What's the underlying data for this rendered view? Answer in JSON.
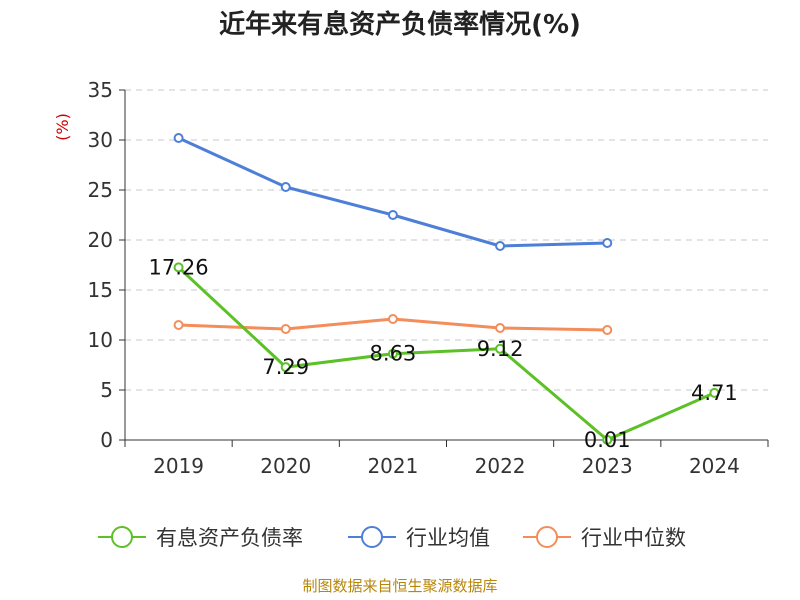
{
  "chart_data": {
    "type": "line",
    "title": "近年来有息资产负债率情况(%)",
    "ylabel": "(%)",
    "xlabel": "",
    "categories": [
      "2019",
      "2020",
      "2021",
      "2022",
      "2023",
      "2024"
    ],
    "ylim": [
      0,
      35
    ],
    "yticks": [
      0,
      5,
      10,
      15,
      20,
      25,
      30,
      35
    ],
    "grid": true,
    "legend_position": "bottom",
    "series": [
      {
        "name": "有息资产负债率",
        "color": "#5cc027",
        "values": [
          17.26,
          7.29,
          8.63,
          9.12,
          0.01,
          4.71
        ],
        "labels": [
          "17.26",
          "7.29",
          "8.63",
          "9.12",
          "0.01",
          "4.71"
        ]
      },
      {
        "name": "行业均值",
        "color": "#4d7fd9",
        "values": [
          30.2,
          25.3,
          22.5,
          19.4,
          19.7,
          null
        ]
      },
      {
        "name": "行业中位数",
        "color": "#f38d5a",
        "values": [
          11.5,
          11.1,
          12.1,
          11.2,
          11.0,
          null
        ]
      }
    ],
    "source": "制图数据来自恒生聚源数据库"
  }
}
